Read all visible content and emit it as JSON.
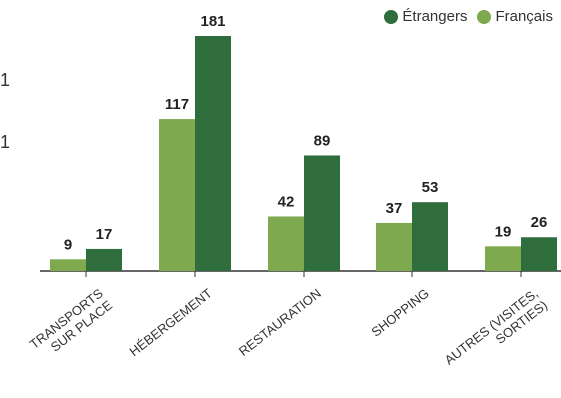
{
  "chart_data": {
    "type": "bar",
    "categories": [
      "TRANSPORTS SUR PLACE",
      "HÉBERGEMENT",
      "RESTAURATION",
      "SHOPPING",
      "AUTRES (VISITES, SORTIES)"
    ],
    "category_lines": [
      [
        "TRANSPORTS",
        "SUR PLACE"
      ],
      [
        "HÉBERGEMENT"
      ],
      [
        "RESTAURATION"
      ],
      [
        "SHOPPING"
      ],
      [
        "AUTRES (VISITES,",
        "SORTIES)"
      ]
    ],
    "series": [
      {
        "name": "Français",
        "values": [
          9,
          117,
          42,
          37,
          19
        ],
        "color": "#7ea94e"
      },
      {
        "name": "Étrangers",
        "values": [
          17,
          181,
          89,
          53,
          26
        ],
        "color": "#2f6d3d"
      }
    ],
    "legend_order": [
      "Étrangers",
      "Français"
    ],
    "left_ticks": [
      "1",
      "1"
    ],
    "ylim": [
      0,
      181
    ],
    "legend_position": "top-right",
    "grid": false,
    "baseline_color": "#333333",
    "label_color": "#222222",
    "tick_color": "#333333"
  }
}
